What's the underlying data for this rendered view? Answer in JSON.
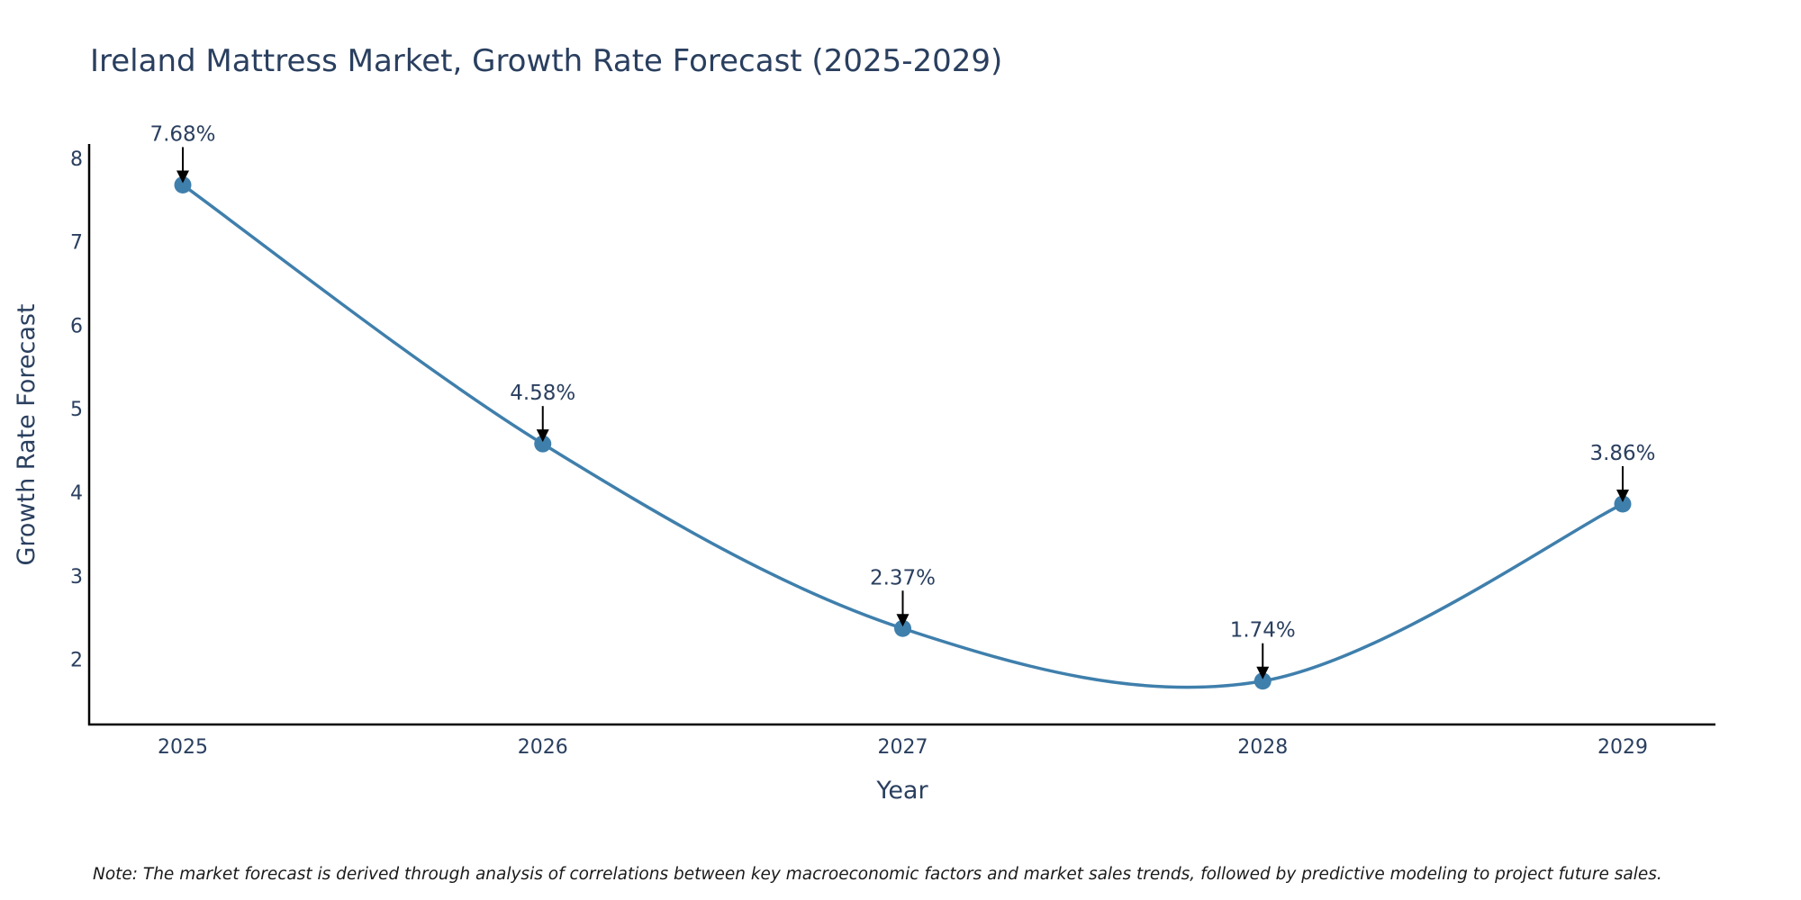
{
  "chart_data": {
    "type": "line",
    "title": "Ireland Mattress Market, Growth Rate Forecast (2025-2029)",
    "xlabel": "Year",
    "ylabel": "Growth Rate Forecast",
    "x": [
      "2025",
      "2026",
      "2027",
      "2028",
      "2029"
    ],
    "series": [
      {
        "name": "Growth Rate Forecast",
        "values": [
          7.68,
          4.58,
          2.37,
          1.74,
          3.86
        ],
        "color": "#3f7fac"
      }
    ],
    "annotations": [
      "7.68%",
      "4.58%",
      "2.37%",
      "1.74%",
      "3.86%"
    ],
    "yticks": [
      2,
      3,
      4,
      5,
      6,
      7,
      8
    ],
    "ylim": [
      1.22,
      8.17
    ],
    "grid": false,
    "line_shape": "spline"
  },
  "note": "Note: The market forecast is derived through analysis of correlations between key macroeconomic factors and market sales trends, followed by predictive modeling to project future sales."
}
